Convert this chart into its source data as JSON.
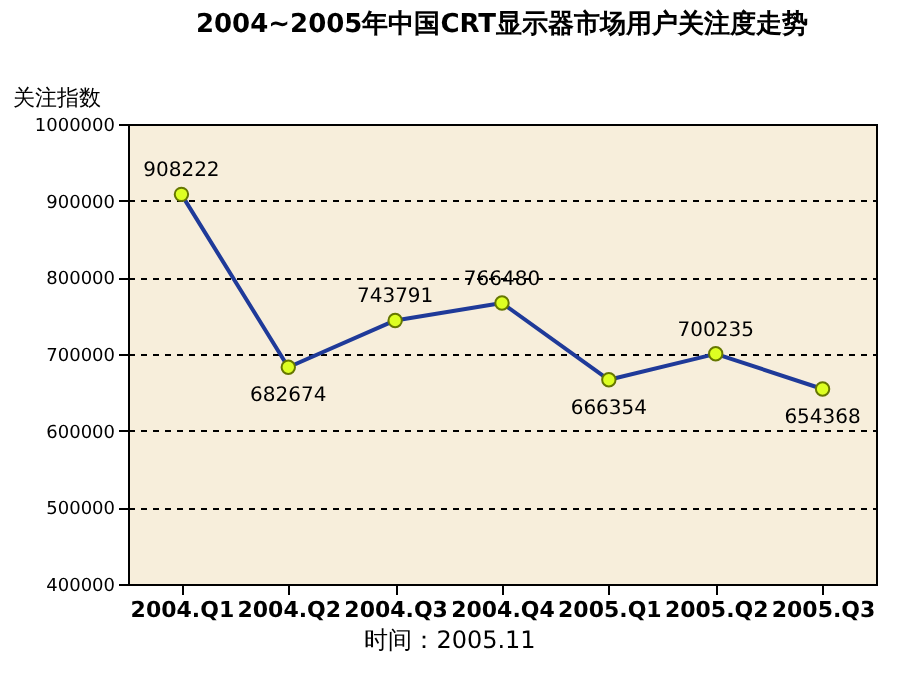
{
  "chart_data": {
    "type": "line",
    "title": "2004~2005年中国CRT显示器市场用户关注度走势",
    "ylabel": "关注指数",
    "categories": [
      "2004.Q1",
      "2004.Q2",
      "2004.Q3",
      "2004.Q4",
      "2005.Q1",
      "2005.Q2",
      "2005.Q3"
    ],
    "series": [
      {
        "color": "#1f3a99",
        "values": [
          908222,
          682674,
          743791,
          766480,
          666354,
          700235,
          654368
        ]
      }
    ],
    "ylim": [
      400000,
      1000000
    ],
    "yticks": [
      400000,
      500000,
      600000,
      700000,
      800000,
      900000,
      1000000
    ],
    "grid": "y",
    "marker": "circle",
    "data_labels": true,
    "annotations": [
      "时间：2005.11"
    ]
  }
}
